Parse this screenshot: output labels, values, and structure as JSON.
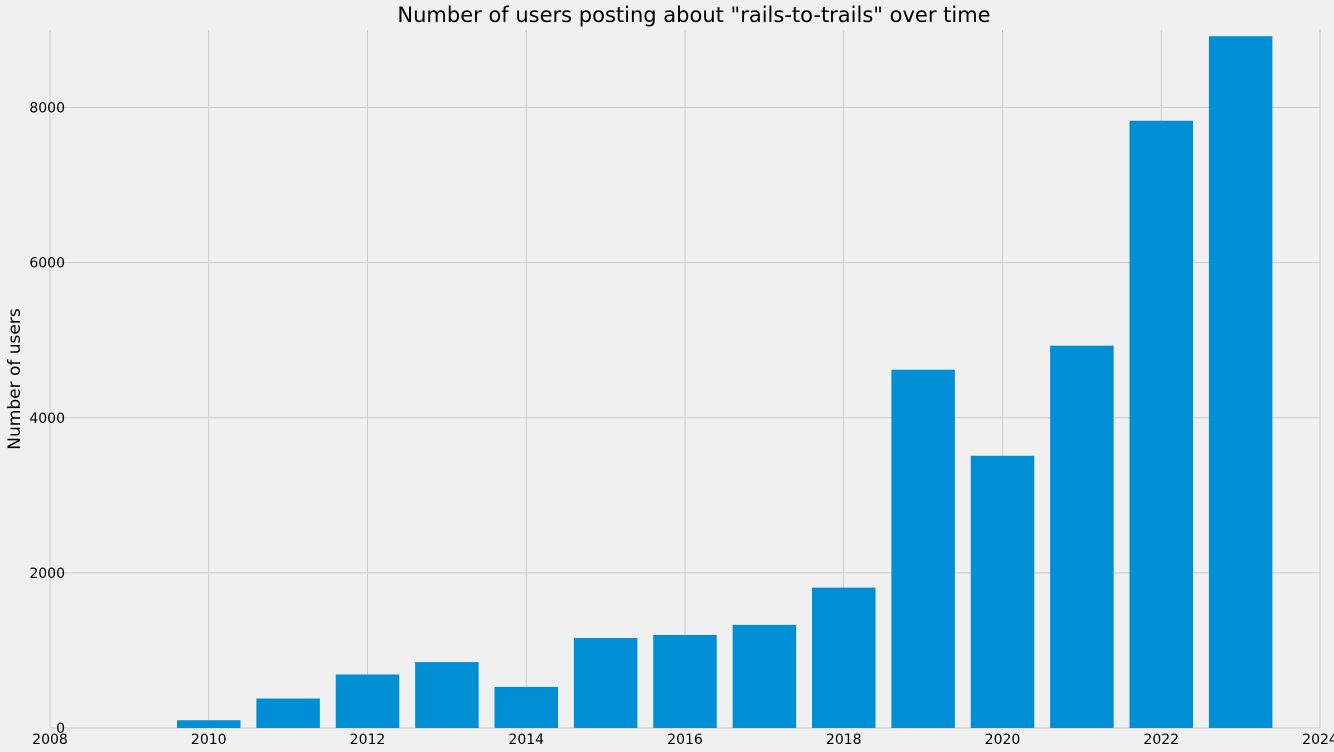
{
  "chart_data": {
    "type": "bar",
    "title": "Number of users posting about \"rails-to-trails\" over time",
    "xlabel": "",
    "ylabel": "Number of users",
    "categories": [
      2010,
      2011,
      2012,
      2013,
      2014,
      2015,
      2016,
      2017,
      2018,
      2019,
      2020,
      2021,
      2022,
      2023
    ],
    "values": [
      100,
      380,
      690,
      850,
      530,
      1160,
      1200,
      1330,
      1810,
      4620,
      3510,
      4930,
      7830,
      8920
    ],
    "xlim": [
      2008,
      2024
    ],
    "ylim": [
      0,
      9000
    ],
    "xticks": [
      2008,
      2010,
      2012,
      2014,
      2016,
      2018,
      2020,
      2022,
      2024
    ],
    "yticks": [
      0,
      2000,
      4000,
      6000,
      8000
    ],
    "grid": true,
    "bar_color": "#008fd5",
    "background": "#f0f0f0"
  }
}
